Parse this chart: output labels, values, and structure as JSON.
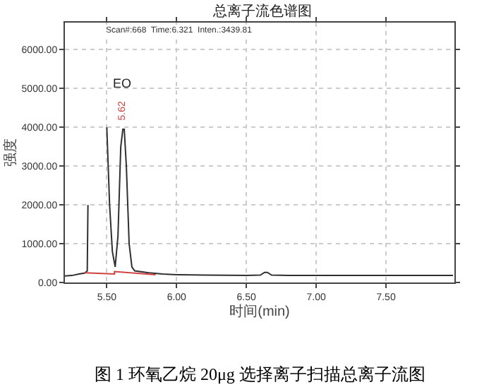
{
  "chart_data": {
    "type": "line",
    "title": "总离子流色谱图",
    "xlabel": "时间(min)",
    "ylabel": "强度",
    "series": [
      {
        "color": "#303030",
        "x": [
          5.2,
          5.25,
          5.3,
          5.34,
          5.355,
          5.36,
          5.365,
          5.37,
          5.49,
          5.5,
          5.52,
          5.54,
          5.56,
          5.58,
          5.6,
          5.615,
          5.625,
          5.64,
          5.66,
          5.68,
          5.7,
          5.8,
          5.9,
          6.0,
          6.2,
          6.5,
          6.6,
          6.63,
          6.65,
          6.68,
          6.8,
          7.0,
          7.5,
          7.98
        ],
        "values": [
          170,
          180,
          220,
          240,
          280,
          300,
          2000,
          null,
          null,
          4000,
          2000,
          800,
          400,
          1200,
          3500,
          3950,
          3950,
          3000,
          1000,
          400,
          300,
          250,
          220,
          200,
          190,
          180,
          190,
          260,
          260,
          190,
          180,
          180,
          180,
          180
        ]
      },
      {
        "color": "#d04040",
        "x": [
          5.34,
          5.555,
          5.555,
          5.85
        ],
        "values": [
          250,
          220,
          280,
          200
        ]
      }
    ],
    "annotations": [
      "EO",
      "5.62",
      "Scan#:668  Time:6.321  Inten.:3439.81",
      "图 1 环氧乙烷 20μg 选择离子扫描总离子流图"
    ],
    "xlim": [
      5.2,
      7.99
    ],
    "ylim": [
      0,
      6700
    ],
    "xticks": [
      {
        "value": 5.5,
        "label": "5.50"
      },
      {
        "value": 6,
        "label": "6.00"
      },
      {
        "value": 6.5,
        "label": "6.50"
      },
      {
        "value": 7,
        "label": "7.00"
      },
      {
        "value": 7.5,
        "label": "7.50"
      }
    ],
    "yticks": [
      {
        "value": 0,
        "label": "0.00"
      },
      {
        "value": 1000,
        "label": "1000.00"
      },
      {
        "value": 2000,
        "label": "2000.00"
      },
      {
        "value": 3000,
        "label": "3000.00"
      },
      {
        "value": 4000,
        "label": "4000.00"
      },
      {
        "value": 5000,
        "label": "5000.00"
      },
      {
        "value": 6000,
        "label": "6000.00"
      }
    ],
    "grid": true,
    "marker": "none",
    "line_style": "solid"
  }
}
